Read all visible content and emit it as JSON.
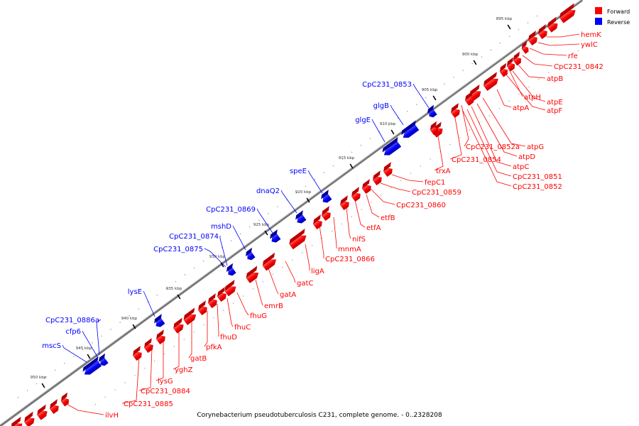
{
  "caption": "Corynebacterium pseudotuberculosis C231, complete genome. - 0..2328208",
  "legend": [
    {
      "label": "Forward",
      "color": "#ff0000"
    },
    {
      "label": "Reverse",
      "color": "#0000ff"
    }
  ],
  "colors": {
    "forward": "#ff0000",
    "forward_dark": "#b80000",
    "reverse": "#0000ff",
    "reverse_dark": "#00009a",
    "backbone": "#8a8a8a"
  },
  "ticks": [
    {
      "label": "895 kbp",
      "pos_kbp": 895
    },
    {
      "label": "900 kbp",
      "pos_kbp": 900
    },
    {
      "label": "905 kbp",
      "pos_kbp": 905
    },
    {
      "label": "910 kbp",
      "pos_kbp": 910
    },
    {
      "label": "915 kbp",
      "pos_kbp": 915
    },
    {
      "label": "920 kbp",
      "pos_kbp": 920
    },
    {
      "label": "925 kbp",
      "pos_kbp": 925
    },
    {
      "label": "930 kbp",
      "pos_kbp": 930
    },
    {
      "label": "935 kbp",
      "pos_kbp": 935
    },
    {
      "label": "940 kbp",
      "pos_kbp": 940
    },
    {
      "label": "945 kbp",
      "pos_kbp": 945
    },
    {
      "label": "950 kbp",
      "pos_kbp": 950
    }
  ],
  "forward_labels": [
    "hemK",
    "ywlC",
    "rfe",
    "CpC231_0842",
    "atpB",
    "atpH",
    "atpE",
    "atpF",
    "atpA",
    "atpG",
    "CpC231_0852a",
    "atpD",
    "CpC231_0854",
    "atpC",
    "CpC231_0851",
    "CpC231_0852",
    "trxA",
    "fepC1",
    "CpC231_0859",
    "CpC231_0860",
    "etfB",
    "etfA",
    "nifS",
    "mnmA",
    "CpC231_0866",
    "ligA",
    "gatC",
    "gatA",
    "emrB",
    "fhuG",
    "fhuC",
    "fhuD",
    "pfkA",
    "gatB",
    "yghZ",
    "lysG",
    "CpC231_0884",
    "CpC231_0885",
    "ilvH"
  ],
  "reverse_labels": [
    "CpC231_0853",
    "glgB",
    "glgE",
    "speE",
    "dnaQ2",
    "CpC231_0869",
    "mshD",
    "CpC231_0874",
    "CpC231_0875",
    "lysE",
    "CpC231_0886a",
    "cfp6",
    "mscS"
  ]
}
